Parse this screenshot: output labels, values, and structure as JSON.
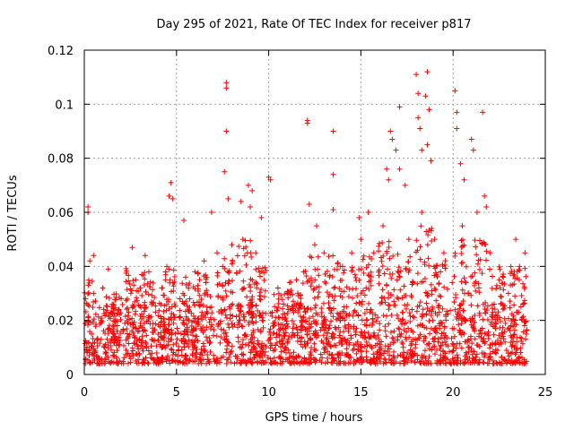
{
  "chart_data": {
    "type": "scatter",
    "title": "Day 295 of 2021, Rate Of TEC Index for receiver p817",
    "xlabel": "GPS time / hours",
    "ylabel": "ROTI / TECUs",
    "xlim": [
      0,
      25
    ],
    "ylim": [
      0,
      0.12
    ],
    "x_ticks": [
      "0",
      "5",
      "10",
      "15",
      "20",
      "25"
    ],
    "y_ticks": [
      "0",
      "0.02",
      "0.04",
      "0.06",
      "0.08",
      "0.1",
      "0.12"
    ],
    "x_tick_values": [
      0,
      5,
      10,
      15,
      20,
      25
    ],
    "y_tick_values": [
      0,
      0.02,
      0.04,
      0.06,
      0.08,
      0.1,
      0.12
    ],
    "grid": true,
    "legend": "none",
    "marker": "+",
    "marker_color": "#ff0000",
    "x_data_range": [
      0,
      24
    ],
    "series": [
      {
        "points": [
          [
            0.2,
            0.062
          ],
          [
            0.2,
            0.06
          ],
          [
            0.3,
            0.042
          ],
          [
            0.5,
            0.044
          ],
          [
            1.0,
            0.032
          ],
          [
            1.3,
            0.039
          ],
          [
            2.6,
            0.047
          ],
          [
            3.3,
            0.044
          ],
          [
            4.6,
            0.066
          ],
          [
            4.7,
            0.071
          ],
          [
            4.8,
            0.065
          ],
          [
            5.4,
            0.057
          ],
          [
            6.9,
            0.06
          ],
          [
            7.6,
            0.075
          ],
          [
            7.7,
            0.108
          ],
          [
            7.7,
            0.106
          ],
          [
            7.7,
            0.09
          ],
          [
            7.8,
            0.065
          ],
          [
            8.5,
            0.064
          ],
          [
            8.9,
            0.07
          ],
          [
            9.0,
            0.062
          ],
          [
            9.1,
            0.068
          ],
          [
            9.6,
            0.058
          ],
          [
            10.0,
            0.073
          ],
          [
            10.1,
            0.072
          ],
          [
            12.1,
            0.094
          ],
          [
            12.1,
            0.093
          ],
          [
            12.2,
            0.063
          ],
          [
            12.6,
            0.055
          ],
          [
            13.5,
            0.09
          ],
          [
            13.5,
            0.074
          ],
          [
            13.5,
            0.061
          ],
          [
            14.9,
            0.058
          ],
          [
            15.4,
            0.06
          ],
          [
            16.4,
            0.076
          ],
          [
            16.5,
            0.072
          ],
          [
            16.6,
            0.09
          ],
          [
            16.7,
            0.087
          ],
          [
            16.9,
            0.083
          ],
          [
            17.1,
            0.099
          ],
          [
            17.1,
            0.076
          ],
          [
            17.4,
            0.07
          ],
          [
            18.0,
            0.111
          ],
          [
            18.1,
            0.104
          ],
          [
            18.1,
            0.095
          ],
          [
            18.2,
            0.091
          ],
          [
            18.3,
            0.083
          ],
          [
            18.5,
            0.103
          ],
          [
            18.6,
            0.112
          ],
          [
            18.6,
            0.085
          ],
          [
            18.7,
            0.098
          ],
          [
            18.8,
            0.079
          ],
          [
            20.1,
            0.105
          ],
          [
            20.2,
            0.097
          ],
          [
            20.2,
            0.091
          ],
          [
            20.4,
            0.078
          ],
          [
            20.6,
            0.072
          ],
          [
            21.0,
            0.087
          ],
          [
            21.1,
            0.083
          ],
          [
            21.6,
            0.097
          ],
          [
            21.7,
            0.066
          ],
          [
            21.8,
            0.062
          ],
          [
            23.4,
            0.05
          ],
          [
            23.9,
            0.045
          ],
          [
            0.5,
            0.03
          ],
          [
            1.5,
            0.025
          ],
          [
            2.0,
            0.028
          ],
          [
            2.8,
            0.035
          ],
          [
            3.5,
            0.038
          ],
          [
            4.2,
            0.032
          ],
          [
            5.5,
            0.036
          ],
          [
            6.0,
            0.038
          ],
          [
            6.5,
            0.042
          ],
          [
            7.2,
            0.045
          ],
          [
            8.0,
            0.048
          ],
          [
            8.6,
            0.05
          ],
          [
            9.3,
            0.045
          ],
          [
            10.5,
            0.032
          ],
          [
            11.0,
            0.03
          ],
          [
            11.5,
            0.035
          ],
          [
            12.5,
            0.048
          ],
          [
            13.0,
            0.045
          ],
          [
            14.0,
            0.04
          ],
          [
            14.5,
            0.045
          ],
          [
            15.0,
            0.05
          ],
          [
            15.7,
            0.045
          ],
          [
            16.2,
            0.055
          ],
          [
            17.6,
            0.05
          ],
          [
            18.3,
            0.06
          ],
          [
            19.0,
            0.05
          ],
          [
            19.5,
            0.045
          ],
          [
            20.5,
            0.055
          ],
          [
            21.3,
            0.06
          ],
          [
            22.0,
            0.045
          ],
          [
            22.5,
            0.035
          ],
          [
            23.0,
            0.03
          ],
          [
            23.6,
            0.04
          ]
        ]
      }
    ]
  }
}
